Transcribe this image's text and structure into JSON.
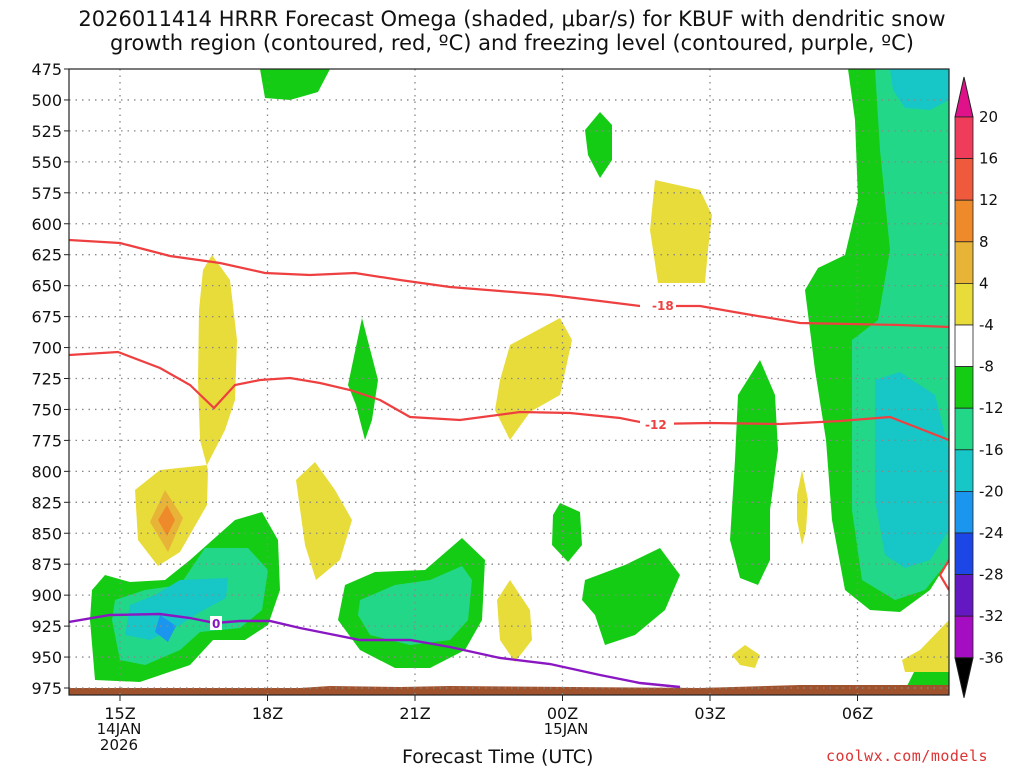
{
  "chart_data": {
    "type": "contour",
    "title_line1": "2026011414 HRRR Forecast Omega (shaded, μbar/s) for KBUF with dendritic snow",
    "title_line2": "growth region (contoured, red, ºC) and freezing level (contoured, purple, ºC)",
    "xlabel": "Forecast Time (UTC)",
    "x_ticks": [
      "15Z",
      "18Z",
      "21Z",
      "00Z",
      "03Z",
      "06Z"
    ],
    "x_sublabels": [
      {
        "tick": "15Z",
        "lines": [
          "14JAN",
          "2026"
        ]
      },
      {
        "tick": "00Z",
        "lines": [
          "15JAN"
        ]
      }
    ],
    "y_ticks": [
      475,
      500,
      525,
      550,
      575,
      600,
      625,
      650,
      675,
      700,
      725,
      750,
      775,
      800,
      825,
      850,
      875,
      900,
      925,
      950,
      975
    ],
    "colorbar_ticks": [
      "20",
      "16",
      "12",
      "8",
      "4",
      "-4",
      "-8",
      "-12",
      "-16",
      "-20",
      "-24",
      "-28",
      "-32",
      "-36"
    ],
    "colorbar_colors": [
      "#ee3c5a",
      "#ef5a3c",
      "#ef8a2a",
      "#e8b437",
      "#e8dc3a",
      "#ffffff",
      "#15cc15",
      "#22d888",
      "#17c6c6",
      "#1b96ee",
      "#1c46e6",
      "#6418c2",
      "#a50dc3",
      "#a0a0a0"
    ],
    "contour_labels": {
      "dgz_top": "-18",
      "dgz_bottom": "-12",
      "freezing": "0"
    },
    "credit": "coolwx.com/models"
  }
}
